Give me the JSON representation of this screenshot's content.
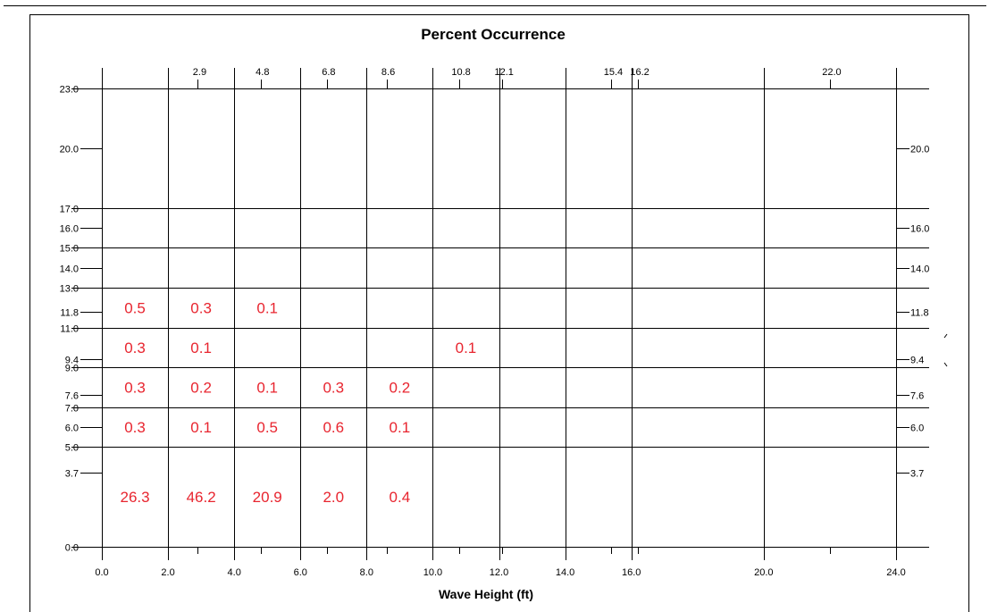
{
  "chart_data": {
    "type": "heatmap",
    "title": "Percent Occurrence",
    "xlabel": "Wave Height (ft)",
    "ylabel": "",
    "xlim": [
      0,
      24
    ],
    "ylim": [
      0,
      23
    ],
    "x_bin_edges": [
      0,
      2,
      4,
      6,
      8,
      10,
      12,
      14,
      16,
      20,
      24
    ],
    "y_bin_edges": [
      0,
      5,
      7,
      9,
      11,
      13,
      15,
      17,
      23
    ],
    "x_bottom_tick_labels": [
      "0.0",
      "2.0",
      "4.0",
      "6.0",
      "8.0",
      "10.0",
      "12.0",
      "14.0",
      "16.0",
      "20.0",
      "24.0"
    ],
    "x_top_ticks": [
      2.9,
      4.8,
      6.8,
      8.6,
      10.8,
      12.1,
      15.4,
      16.2,
      22.0
    ],
    "x_top_tick_labels": [
      "2.9",
      "4.8",
      "6.8",
      "8.6",
      "10.8",
      "12.1",
      "15.4",
      "16.2",
      "22.0"
    ],
    "y_left_ticks": [
      0.0,
      3.7,
      5.0,
      6.0,
      7.0,
      7.6,
      9.0,
      9.4,
      11.0,
      11.8,
      13.0,
      14.0,
      15.0,
      16.0,
      17.0,
      20.0,
      23.0
    ],
    "y_left_tick_labels": [
      "0.0",
      "3.7",
      "5.0",
      "6.0",
      "7.0",
      "7.6",
      "9.0",
      "9.4",
      "11.0",
      "11.8",
      "13.0",
      "14.0",
      "15.0",
      "16.0",
      "17.0",
      "20.0",
      "23.0"
    ],
    "y_right_ticks": [
      3.7,
      6.0,
      7.6,
      9.4,
      11.8,
      14.0,
      16.0,
      20.0
    ],
    "y_right_tick_labels": [
      "3.7",
      "6.0",
      "7.6",
      "9.4",
      "11.8",
      "14.0",
      "16.0",
      "20.0"
    ],
    "cells": [
      {
        "x_bin": [
          0,
          2
        ],
        "y_bin": [
          11,
          13
        ],
        "value": 0.5,
        "label": "0.5"
      },
      {
        "x_bin": [
          2,
          4
        ],
        "y_bin": [
          11,
          13
        ],
        "value": 0.3,
        "label": "0.3"
      },
      {
        "x_bin": [
          4,
          6
        ],
        "y_bin": [
          11,
          13
        ],
        "value": 0.1,
        "label": "0.1"
      },
      {
        "x_bin": [
          0,
          2
        ],
        "y_bin": [
          9,
          11
        ],
        "value": 0.3,
        "label": "0.3"
      },
      {
        "x_bin": [
          2,
          4
        ],
        "y_bin": [
          9,
          11
        ],
        "value": 0.1,
        "label": "0.1"
      },
      {
        "x_bin": [
          10,
          12
        ],
        "y_bin": [
          9,
          11
        ],
        "value": 0.1,
        "label": "0.1"
      },
      {
        "x_bin": [
          0,
          2
        ],
        "y_bin": [
          7,
          9
        ],
        "value": 0.3,
        "label": "0.3"
      },
      {
        "x_bin": [
          2,
          4
        ],
        "y_bin": [
          7,
          9
        ],
        "value": 0.2,
        "label": "0.2"
      },
      {
        "x_bin": [
          4,
          6
        ],
        "y_bin": [
          7,
          9
        ],
        "value": 0.1,
        "label": "0.1"
      },
      {
        "x_bin": [
          6,
          8
        ],
        "y_bin": [
          7,
          9
        ],
        "value": 0.3,
        "label": "0.3"
      },
      {
        "x_bin": [
          8,
          10
        ],
        "y_bin": [
          7,
          9
        ],
        "value": 0.2,
        "label": "0.2"
      },
      {
        "x_bin": [
          0,
          2
        ],
        "y_bin": [
          5,
          7
        ],
        "value": 0.3,
        "label": "0.3"
      },
      {
        "x_bin": [
          2,
          4
        ],
        "y_bin": [
          5,
          7
        ],
        "value": 0.1,
        "label": "0.1"
      },
      {
        "x_bin": [
          4,
          6
        ],
        "y_bin": [
          5,
          7
        ],
        "value": 0.5,
        "label": "0.5"
      },
      {
        "x_bin": [
          6,
          8
        ],
        "y_bin": [
          5,
          7
        ],
        "value": 0.6,
        "label": "0.6"
      },
      {
        "x_bin": [
          8,
          10
        ],
        "y_bin": [
          5,
          7
        ],
        "value": 0.1,
        "label": "0.1"
      },
      {
        "x_bin": [
          0,
          2
        ],
        "y_bin": [
          0,
          5
        ],
        "value": 26.3,
        "label": "26.3"
      },
      {
        "x_bin": [
          2,
          4
        ],
        "y_bin": [
          0,
          5
        ],
        "value": 46.2,
        "label": "46.2"
      },
      {
        "x_bin": [
          4,
          6
        ],
        "y_bin": [
          0,
          5
        ],
        "value": 20.9,
        "label": "20.9"
      },
      {
        "x_bin": [
          6,
          8
        ],
        "y_bin": [
          0,
          5
        ],
        "value": 2.0,
        "label": "2.0"
      },
      {
        "x_bin": [
          8,
          10
        ],
        "y_bin": [
          0,
          5
        ],
        "value": 0.4,
        "label": "0.4"
      }
    ],
    "grid": true,
    "legend": "none"
  },
  "colors": {
    "cell_value": "#e8252f",
    "lines": "#000000",
    "background": "#ffffff"
  }
}
